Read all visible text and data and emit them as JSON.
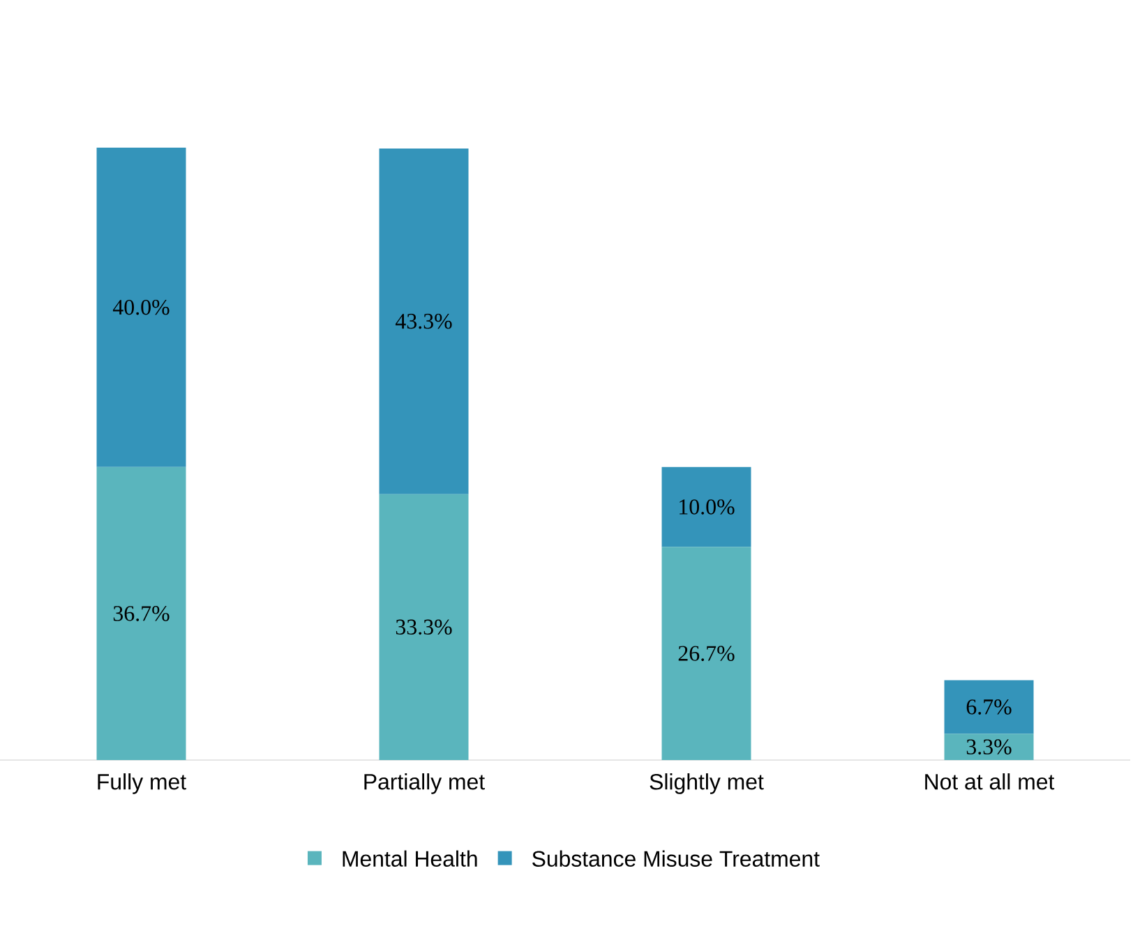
{
  "chart_data": {
    "type": "bar",
    "stacked": true,
    "legend": "bottom",
    "categories": [
      "Fully met",
      "Partially met",
      "Slightly met",
      "Not at all met"
    ],
    "series": [
      {
        "name": "Mental Health",
        "color": "#5ab5bd",
        "values": [
          36.7,
          33.3,
          26.7,
          3.3
        ],
        "value_labels": [
          "36.7%",
          "33.3%",
          "26.7%",
          "3.3%"
        ]
      },
      {
        "name": "Substance Misuse Treatment",
        "color": "#3494ba",
        "values": [
          40.0,
          43.3,
          10.0,
          6.7
        ],
        "value_labels": [
          "40.0%",
          "43.3%",
          "10.0%",
          "6.7%"
        ]
      }
    ]
  }
}
